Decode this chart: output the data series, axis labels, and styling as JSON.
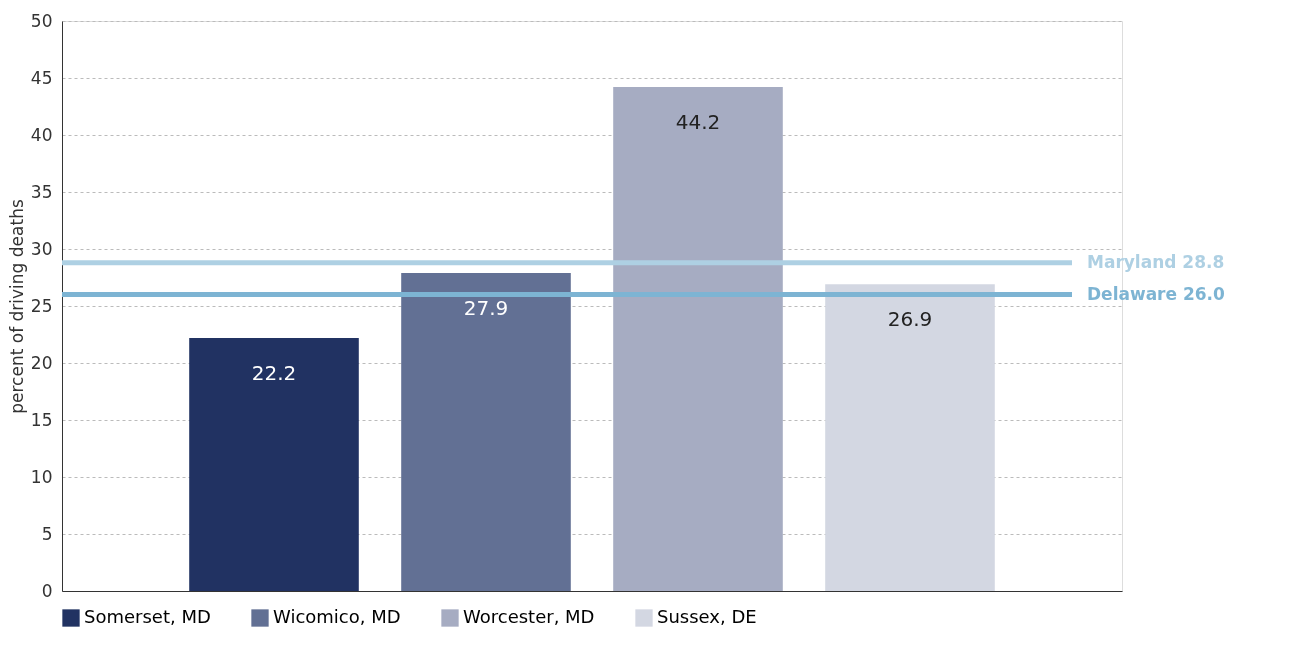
{
  "chart_data": {
    "type": "bar",
    "ylabel": "percent of driving deaths",
    "categories": [
      null,
      null,
      null,
      null
    ],
    "series": [
      {
        "name": "Somerset, MD",
        "color": "#213262",
        "values": [
          22.2,
          null,
          null,
          null
        ]
      },
      {
        "name": "Wicomico, MD",
        "color": "#627094",
        "values": [
          null,
          27.9,
          null,
          null
        ]
      },
      {
        "name": "Worcester, MD",
        "color": "#a6acc2",
        "values": [
          null,
          null,
          44.2,
          null
        ]
      },
      {
        "name": "Sussex, DE",
        "color": "#d3d7e2",
        "values": [
          null,
          null,
          null,
          26.9
        ]
      }
    ],
    "ylim": [
      0,
      50
    ],
    "yticks": [
      0,
      5,
      10,
      15,
      20,
      25,
      30,
      35,
      40,
      45,
      50
    ],
    "grid": "y",
    "legend": "bottom",
    "tick_labels": "y",
    "data_labels": true,
    "ref_lines": [
      {
        "axis": "y",
        "value": 28.8,
        "label": "Maryland 28.8",
        "color": "#aed0e3"
      },
      {
        "axis": "y",
        "value": 26.0,
        "label": "Delaware 26.0",
        "color": "#7db4d3"
      }
    ]
  }
}
